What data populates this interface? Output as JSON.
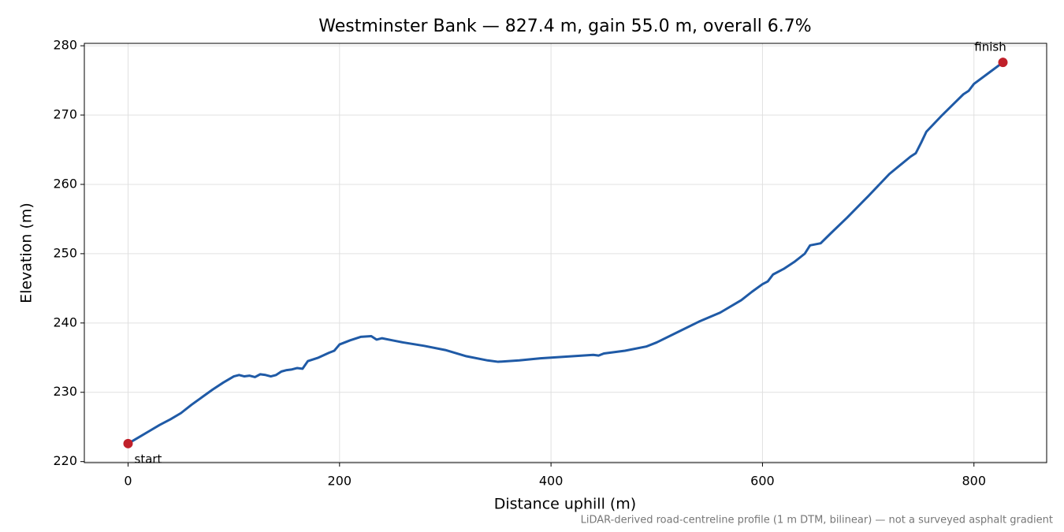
{
  "chart_data": {
    "type": "line",
    "title": "Westminster Bank — 827.4 m, gain 55.0 m, overall 6.7%",
    "x_label": "Distance uphill (m)",
    "y_label": "Elevation (m)",
    "footnote": "LiDAR-derived road-centreline profile (1 m DTM, bilinear) — not a surveyed asphalt gradient",
    "x": [
      0,
      10,
      20,
      30,
      40,
      50,
      60,
      70,
      80,
      90,
      100,
      105,
      110,
      115,
      120,
      125,
      130,
      135,
      140,
      145,
      150,
      155,
      160,
      165,
      170,
      180,
      190,
      195,
      200,
      210,
      220,
      230,
      235,
      240,
      250,
      260,
      280,
      300,
      320,
      340,
      350,
      370,
      390,
      410,
      430,
      440,
      445,
      450,
      470,
      490,
      500,
      520,
      540,
      560,
      580,
      590,
      600,
      605,
      610,
      620,
      630,
      640,
      645,
      655,
      665,
      680,
      700,
      720,
      740,
      745,
      750,
      755,
      770,
      780,
      790,
      795,
      800,
      815,
      827.4
    ],
    "series": [
      {
        "name": "Elevation",
        "color": "#1f5aa6",
        "values": [
          222.6,
          223.5,
          224.4,
          225.3,
          226.1,
          227.0,
          228.2,
          229.3,
          230.4,
          231.4,
          232.3,
          232.5,
          232.3,
          232.4,
          232.2,
          232.6,
          232.5,
          232.3,
          232.5,
          233.0,
          233.2,
          233.3,
          233.5,
          233.4,
          234.5,
          235.0,
          235.7,
          236.0,
          236.9,
          237.5,
          238.0,
          238.1,
          237.6,
          237.8,
          237.5,
          237.2,
          236.7,
          236.1,
          235.2,
          234.6,
          234.4,
          234.6,
          234.9,
          235.1,
          235.3,
          235.4,
          235.3,
          235.6,
          236.0,
          236.6,
          237.2,
          238.7,
          240.2,
          241.5,
          243.3,
          244.5,
          245.6,
          246.0,
          247.0,
          247.8,
          248.8,
          250.0,
          251.2,
          251.5,
          253.0,
          255.2,
          258.3,
          261.5,
          264.0,
          264.5,
          266.0,
          267.6,
          270.0,
          271.5,
          273.0,
          273.5,
          274.5,
          276.2,
          277.6
        ]
      }
    ],
    "annotations": [
      {
        "text": "start",
        "x": 0,
        "y": 222.6,
        "color": "#c0202a"
      },
      {
        "text": "finish",
        "x": 827.4,
        "y": 277.6,
        "color": "#c0202a"
      }
    ],
    "xlim": [
      -41.37,
      868.77
    ],
    "ylim": [
      219.85,
      280.35
    ],
    "xticks": [
      0,
      200,
      400,
      600,
      800
    ],
    "yticks": [
      220,
      230,
      240,
      250,
      260,
      270,
      280
    ],
    "grid": true
  }
}
